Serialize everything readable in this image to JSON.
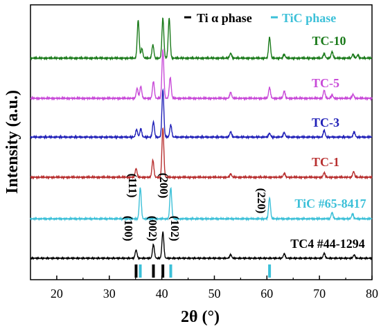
{
  "chart_data": {
    "type": "line",
    "xlabel": "2θ (°)",
    "ylabel": "Intensity (a.u.)",
    "xlim": [
      15,
      80
    ],
    "xticks": [
      20,
      30,
      40,
      50,
      60,
      70,
      80
    ],
    "legend": {
      "placement": "top-right",
      "entries": [
        {
          "label": "Ti α phase",
          "color": "#000000"
        },
        {
          "label": "TiC phase",
          "color": "#3cc0d8"
        }
      ]
    },
    "series": [
      {
        "name": "TC-10",
        "color": "#1a7a1a",
        "label_color": "#1a7a1a",
        "peaks": [
          [
            35.5,
            1.0
          ],
          [
            36.2,
            0.25
          ],
          [
            38.3,
            0.35
          ],
          [
            40.2,
            1.05
          ],
          [
            41.4,
            1.05
          ],
          [
            53.1,
            0.13
          ],
          [
            60.5,
            0.55
          ],
          [
            63.3,
            0.1
          ],
          [
            70.9,
            0.12
          ],
          [
            72.4,
            0.17
          ],
          [
            76.4,
            0.1
          ],
          [
            77.3,
            0.08
          ]
        ]
      },
      {
        "name": "TC-5",
        "color": "#c84ad8",
        "label_color": "#c84ad8",
        "peaks": [
          [
            35.3,
            0.25
          ],
          [
            36.0,
            0.3
          ],
          [
            38.4,
            0.42
          ],
          [
            40.2,
            1.2
          ],
          [
            41.6,
            0.52
          ],
          [
            53.1,
            0.15
          ],
          [
            60.5,
            0.27
          ],
          [
            63.3,
            0.18
          ],
          [
            70.9,
            0.2
          ],
          [
            72.4,
            0.08
          ],
          [
            76.4,
            0.1
          ]
        ]
      },
      {
        "name": "TC-3",
        "color": "#2020b8",
        "label_color": "#2020b8",
        "peaks": [
          [
            35.2,
            0.2
          ],
          [
            36.0,
            0.22
          ],
          [
            38.4,
            0.4
          ],
          [
            40.2,
            1.25
          ],
          [
            41.7,
            0.32
          ],
          [
            53.1,
            0.14
          ],
          [
            60.5,
            0.1
          ],
          [
            63.3,
            0.12
          ],
          [
            70.9,
            0.18
          ],
          [
            76.6,
            0.14
          ]
        ]
      },
      {
        "name": "TC-1",
        "color": "#b83030",
        "label_color": "#b83030",
        "peaks": [
          [
            35.1,
            0.23
          ],
          [
            38.3,
            0.45
          ],
          [
            40.2,
            1.3
          ],
          [
            53.1,
            0.09
          ],
          [
            63.3,
            0.1
          ],
          [
            70.9,
            0.12
          ],
          [
            76.5,
            0.15
          ]
        ]
      },
      {
        "name": "TiC #65-8417",
        "color": "#3cc0d8",
        "label_color": "#3cc0d8",
        "peaks": [
          [
            35.9,
            0.75
          ],
          [
            41.7,
            0.75
          ],
          [
            60.5,
            0.5
          ],
          [
            72.4,
            0.15
          ],
          [
            76.3,
            0.12
          ]
        ]
      },
      {
        "name": "TC4 #44-1294",
        "color": "#000000",
        "label_color": "#000000",
        "peaks": [
          [
            35.1,
            0.3
          ],
          [
            38.4,
            0.5
          ],
          [
            40.2,
            0.95
          ],
          [
            53.1,
            0.13
          ],
          [
            63.3,
            0.16
          ],
          [
            70.9,
            0.18
          ],
          [
            76.6,
            0.12
          ]
        ]
      }
    ],
    "annotations": [
      {
        "text": "(111)",
        "x": 35.9,
        "series": "TiC #65-8417"
      },
      {
        "text": "(200)",
        "x": 41.7,
        "series": "TiC #65-8417"
      },
      {
        "text": "(220)",
        "x": 60.5,
        "series": "TiC #65-8417"
      },
      {
        "text": "(100)",
        "x": 35.1,
        "series": "TC4 #44-1294"
      },
      {
        "text": "(002)",
        "x": 38.4,
        "series": "TC4 #44-1294"
      },
      {
        "text": "(102)",
        "x": 40.2,
        "series": "TC4 #44-1294"
      }
    ],
    "reference_sticks": [
      {
        "phase": "Ti α phase",
        "color": "#000000",
        "x": [
          35.1,
          38.4,
          40.2
        ]
      },
      {
        "phase": "TiC phase",
        "color": "#3cc0d8",
        "x": [
          35.9,
          41.7,
          60.5
        ]
      }
    ]
  }
}
